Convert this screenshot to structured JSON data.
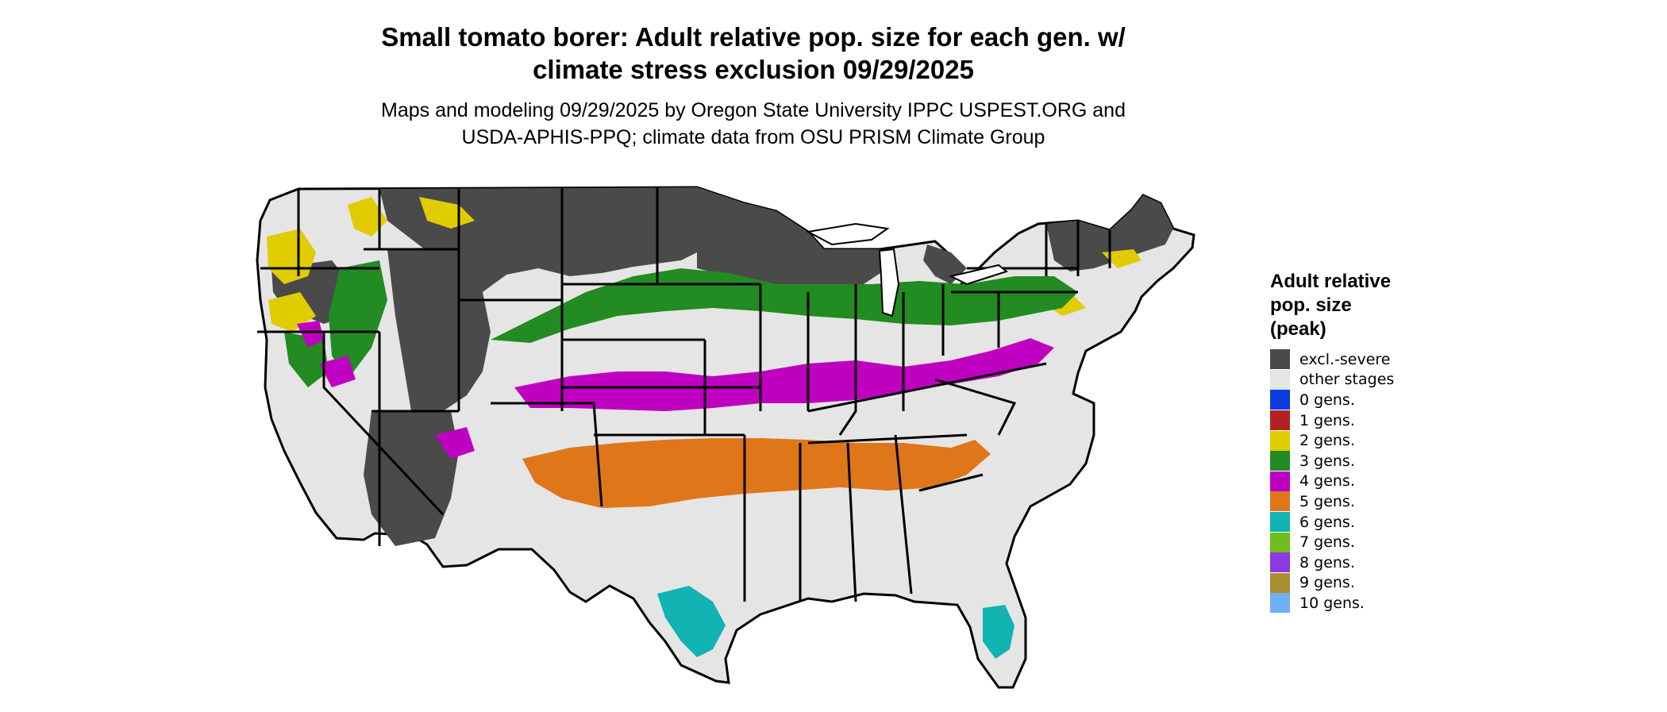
{
  "title_line1": "Small tomato borer: Adult relative pop. size for each gen. w/",
  "title_line2": "climate stress exclusion 09/29/2025",
  "subtitle_line1": "Maps and modeling 09/29/2025 by Oregon State University IPPC USPEST.ORG and",
  "subtitle_line2": "USDA-APHIS-PPQ; climate data from OSU PRISM Climate Group",
  "legend": {
    "title_line1": "Adult relative",
    "title_line2": "pop. size",
    "title_line3": "(peak)",
    "items": [
      {
        "label": "excl.-severe",
        "color": "#4a4a4a"
      },
      {
        "label": "other stages",
        "color": "#e5e5e5"
      },
      {
        "label": "0 gens.",
        "color": "#0a3ae0"
      },
      {
        "label": "1 gens.",
        "color": "#b22222"
      },
      {
        "label": "2 gens.",
        "color": "#e0cc00"
      },
      {
        "label": "3 gens.",
        "color": "#228b22"
      },
      {
        "label": "4 gens.",
        "color": "#c000c0"
      },
      {
        "label": "5 gens.",
        "color": "#e0761a"
      },
      {
        "label": "6 gens.",
        "color": "#11b3b3"
      },
      {
        "label": "7 gens.",
        "color": "#6fbf1a"
      },
      {
        "label": "8 gens.",
        "color": "#8a3ae0"
      },
      {
        "label": "9 gens.",
        "color": "#a89030"
      },
      {
        "label": "10 gens.",
        "color": "#6fb0f0"
      }
    ]
  },
  "colors": {
    "excluded": "#4a4a4a",
    "other": "#e5e5e5",
    "boundary": "#000000"
  }
}
